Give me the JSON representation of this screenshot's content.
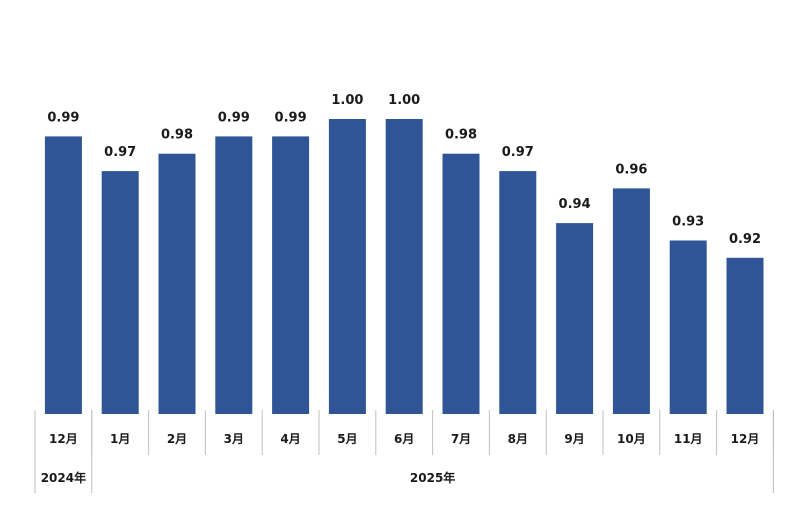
{
  "chart_data": {
    "type": "bar",
    "categories": [
      "12月",
      "1月",
      "2月",
      "3月",
      "4月",
      "5月",
      "6月",
      "7月",
      "8月",
      "9月",
      "10月",
      "11月",
      "12月"
    ],
    "values": [
      0.99,
      0.97,
      0.98,
      0.99,
      0.99,
      1.0,
      1.0,
      0.98,
      0.97,
      0.94,
      0.96,
      0.93,
      0.92
    ],
    "value_labels": [
      "0.99",
      "0.97",
      "0.98",
      "0.99",
      "0.99",
      "1.00",
      "1.00",
      "0.98",
      "0.97",
      "0.94",
      "0.96",
      "0.93",
      "0.92"
    ],
    "year_groups": [
      {
        "label": "2024年",
        "count": 1
      },
      {
        "label": "2025年",
        "count": 12
      }
    ],
    "bar_color": "#2f5597",
    "axis_color": "#bfbfbf",
    "ylim": [
      0.83,
      1.0
    ],
    "grid": false
  }
}
